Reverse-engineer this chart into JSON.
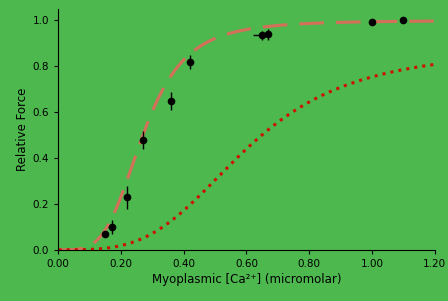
{
  "background_color": "#4db84d",
  "axes_bg_color": "#4db84d",
  "line1_color": "#d4705a",
  "line2_color": "#cc1100",
  "line1_lw": 2.2,
  "line2_lw": 2.2,
  "data_points_x": [
    0.15,
    0.17,
    0.22,
    0.27,
    0.36,
    0.42,
    0.65,
    0.67,
    1.0,
    1.1
  ],
  "data_points_y": [
    0.07,
    0.1,
    0.23,
    0.48,
    0.65,
    0.82,
    0.935,
    0.94,
    0.995,
    1.0
  ],
  "data_err_x": [
    0.01,
    0.01,
    0.01,
    0.01,
    0.01,
    0.01,
    0.03,
    0.01,
    0.01,
    0.01
  ],
  "data_err_y": [
    0.01,
    0.03,
    0.05,
    0.04,
    0.04,
    0.03,
    0.02,
    0.025,
    0.01,
    0.01
  ],
  "hill1_Fmax": 1.0,
  "hill1_EC50": 0.27,
  "hill1_n": 4.0,
  "hill2_Fmax": 0.88,
  "hill2_EC50": 0.6,
  "hill2_n": 3.5,
  "xlim": [
    0.0,
    1.2
  ],
  "ylim": [
    0.0,
    1.05
  ],
  "xticks": [
    0.0,
    0.2,
    0.4,
    0.6,
    0.8,
    1.0,
    1.2
  ],
  "yticks": [
    0.0,
    0.2,
    0.4,
    0.6,
    0.8,
    1.0
  ],
  "xlabel": "Myoplasmic [Ca²⁺] (micromolar)",
  "ylabel": "Relative Force",
  "tick_color": "black",
  "label_color": "black",
  "spine_color": "black",
  "marker": "o",
  "marker_color": "black",
  "marker_size": 4.5,
  "ecolor": "black",
  "figsize": [
    4.48,
    3.01
  ],
  "dpi": 100
}
